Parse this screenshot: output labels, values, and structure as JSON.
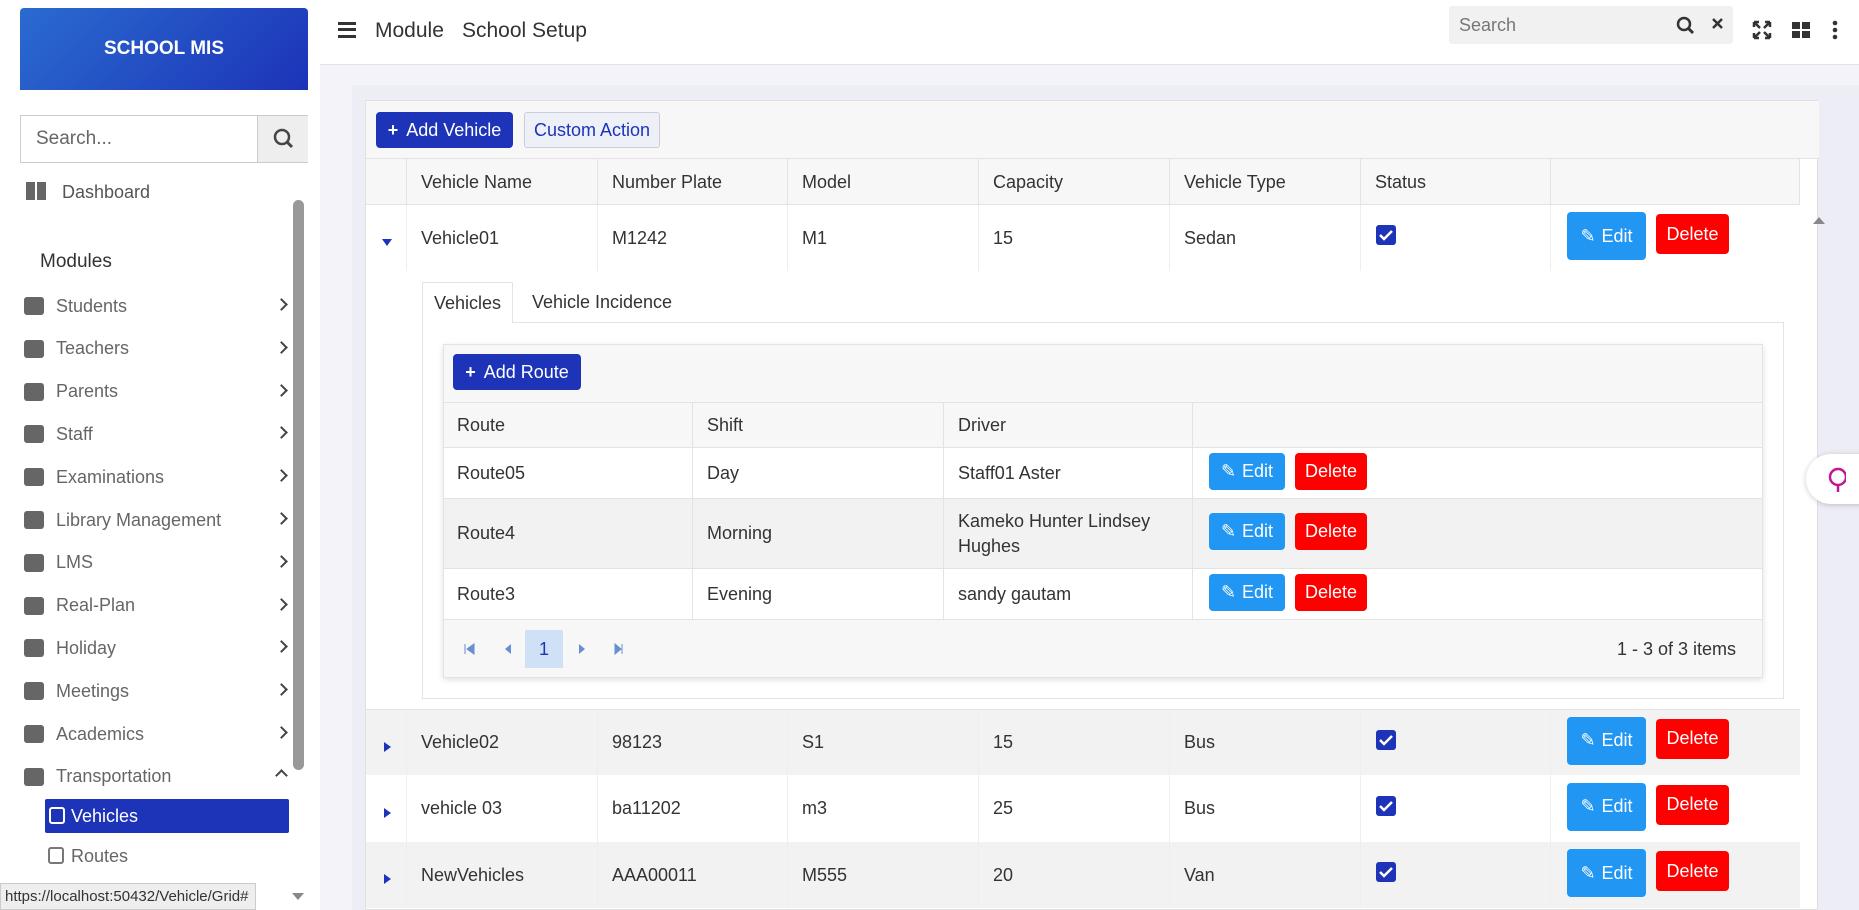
{
  "sidebar": {
    "brand": "SCHOOL MIS",
    "search_placeholder": "Search...",
    "dashboard": "Dashboard",
    "modules_heading": "Modules",
    "modules": [
      "Students",
      "Teachers",
      "Parents",
      "Staff",
      "Examinations",
      "Library Management",
      "LMS",
      "Real-Plan",
      "Holiday",
      "Meetings",
      "Academics",
      "Transportation"
    ],
    "transport_items": [
      "Vehicles",
      "Routes"
    ]
  },
  "topbar": {
    "breadcrumb": [
      "Module",
      "School Setup"
    ],
    "search_placeholder": "Search"
  },
  "toolbar": {
    "add": "Add Vehicle",
    "custom": "Custom Action"
  },
  "grid": {
    "columns": [
      "Vehicle Name",
      "Number Plate",
      "Model",
      "Capacity",
      "Vehicle Type",
      "Status"
    ],
    "rows": [
      [
        "Vehicle01",
        "M1242",
        "M1",
        "15",
        "Sedan"
      ],
      [
        "Vehicle02",
        "98123",
        "S1",
        "15",
        "Bus"
      ],
      [
        "vehicle 03",
        "ba11202",
        "m3",
        "25",
        "Bus"
      ],
      [
        "NewVehicles",
        "AAA00011",
        "M555",
        "20",
        "Van"
      ]
    ],
    "edit": "Edit",
    "delete": "Delete"
  },
  "detail": {
    "tabs": [
      "Vehicles",
      "Vehicle Incidence"
    ],
    "add": "Add Route",
    "columns": [
      "Route",
      "Shift",
      "Driver"
    ],
    "rows": [
      [
        "Route05",
        "Day",
        "Staff01 Aster"
      ],
      [
        "Route4",
        "Morning",
        "Kameko Hunter Lindsey Hughes"
      ],
      [
        "Route3",
        "Evening",
        "sandy gautam"
      ]
    ],
    "page": "1",
    "summary": "1 - 3 of 3 items"
  },
  "status_url": "https://localhost:50432/Vehicle/Grid#"
}
